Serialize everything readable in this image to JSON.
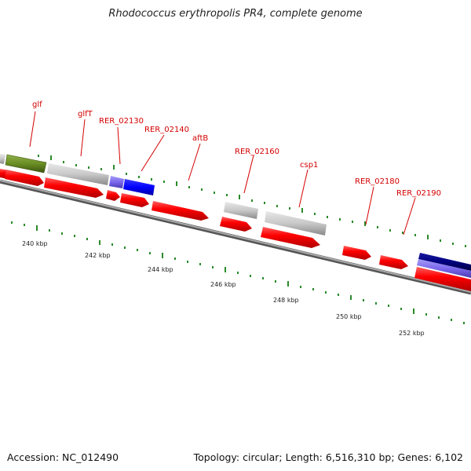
{
  "title": "Rhodococcus erythropolis PR4, complete genome",
  "footer": {
    "accession": "Accession: NC_012490",
    "summary": "Topology: circular; Length: 6,516,310 bp; Genes: 6,102"
  },
  "genes": [
    {
      "name": "glf"
    },
    {
      "name": "glfT"
    },
    {
      "name": "RER_02130"
    },
    {
      "name": "RER_02140"
    },
    {
      "name": "aftB"
    },
    {
      "name": "RER_02160"
    },
    {
      "name": "csp1"
    },
    {
      "name": "RER_02180"
    },
    {
      "name": "RER_02190"
    }
  ],
  "kbp_labels": [
    "240 kbp",
    "242 kbp",
    "244 kbp",
    "246 kbp",
    "248 kbp",
    "250 kbp",
    "252 kbp"
  ],
  "colors": {
    "gene_label": "#d40000",
    "cds": "#ff0000",
    "other_feature": "#c8c8c8",
    "olive_feature": "#6b8e23",
    "blue_feature": "#0000ff",
    "light_purple_feature": "#7b68ee",
    "dark_navy_feature": "#000080",
    "tick": "#2a8a2a",
    "backbone": "#777777"
  }
}
